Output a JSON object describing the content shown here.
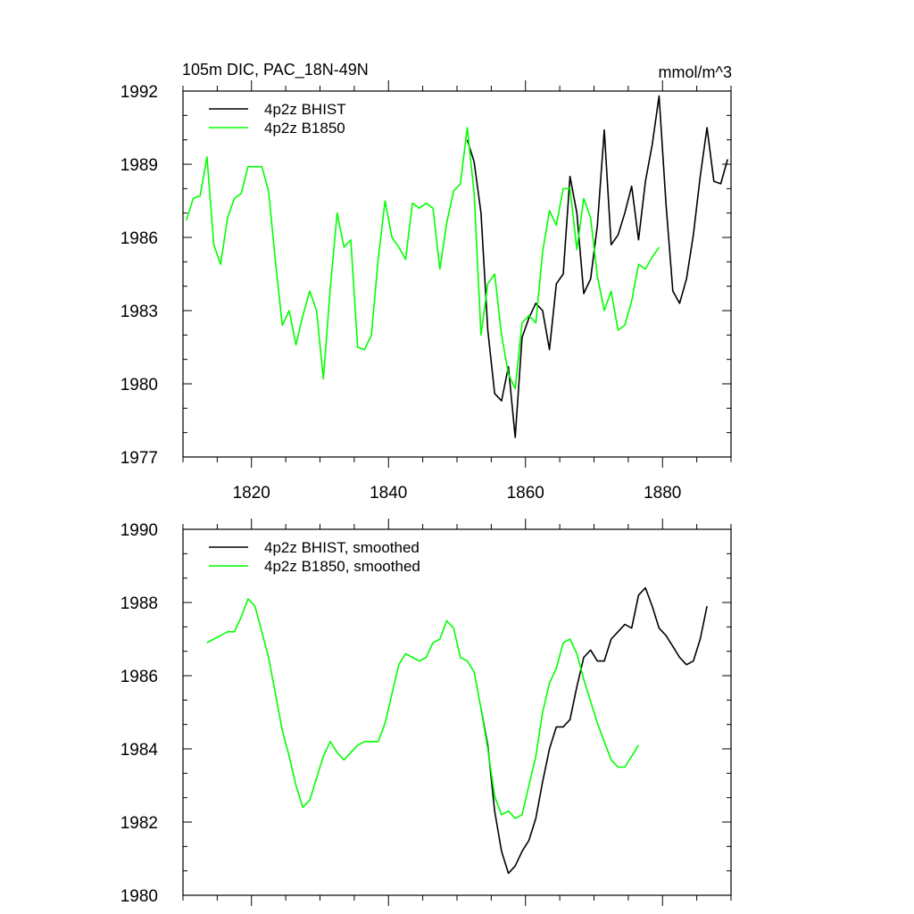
{
  "chart_data": [
    {
      "type": "line",
      "title": "105m DIC, PAC_18N-49N",
      "units": "mmol/m^3",
      "xlim": [
        1810,
        1890
      ],
      "ylim": [
        1977,
        1992
      ],
      "xticks": [
        1820,
        1840,
        1860,
        1880
      ],
      "yticks": [
        1977,
        1980,
        1983,
        1986,
        1989,
        1992
      ],
      "xtick_labels": [
        "1820",
        "1840",
        "1860",
        "1880"
      ],
      "ytick_labels": [
        "1977",
        "1980",
        "1983",
        "1986",
        "1989",
        "1992"
      ],
      "legend": "top-left",
      "series": [
        {
          "name": "4p2z BHIST",
          "color": "#000000",
          "x": [
            1851.5,
            1852.5,
            1853.5,
            1854.5,
            1855.5,
            1856.5,
            1857.5,
            1858.5,
            1859.5,
            1860.5,
            1861.5,
            1862.5,
            1863.5,
            1864.5,
            1865.5,
            1866.5,
            1867.5,
            1868.5,
            1869.5,
            1870.5,
            1871.5,
            1872.5,
            1873.5,
            1874.5,
            1875.5,
            1876.5,
            1877.5,
            1878.5,
            1879.5,
            1880.5,
            1881.5,
            1882.5,
            1883.5,
            1884.5,
            1885.5,
            1886.5,
            1887.5,
            1888.5,
            1889.5
          ],
          "y": [
            1990.0,
            1989.1,
            1987.0,
            1982.2,
            1979.6,
            1979.3,
            1980.7,
            1977.8,
            1981.9,
            1982.7,
            1983.3,
            1983.0,
            1981.4,
            1984.1,
            1984.5,
            1988.5,
            1987.0,
            1983.7,
            1984.3,
            1986.5,
            1990.4,
            1985.7,
            1986.1,
            1987.0,
            1988.1,
            1985.9,
            1988.3,
            1989.8,
            1991.8,
            1987.4,
            1983.8,
            1983.3,
            1984.3,
            1986.1,
            1988.5,
            1990.5,
            1988.3,
            1988.2,
            1989.2
          ]
        },
        {
          "name": "4p2z B1850",
          "color": "#00ff00",
          "x": [
            1810.5,
            1811.5,
            1812.5,
            1813.5,
            1814.5,
            1815.5,
            1816.5,
            1817.5,
            1818.5,
            1819.5,
            1820.5,
            1821.5,
            1822.5,
            1823.5,
            1824.5,
            1825.5,
            1826.5,
            1827.5,
            1828.5,
            1829.5,
            1830.5,
            1831.5,
            1832.5,
            1833.5,
            1834.5,
            1835.5,
            1836.5,
            1837.5,
            1838.5,
            1839.5,
            1840.5,
            1841.5,
            1842.5,
            1843.5,
            1844.5,
            1845.5,
            1846.5,
            1847.5,
            1848.5,
            1849.5,
            1850.5,
            1851.5,
            1852.5,
            1853.5,
            1854.5,
            1855.5,
            1856.5,
            1857.5,
            1858.5,
            1859.5,
            1860.5,
            1861.5,
            1862.5,
            1863.5,
            1864.5,
            1865.5,
            1866.5,
            1867.5,
            1868.5,
            1869.5,
            1870.5,
            1871.5,
            1872.5,
            1873.5,
            1874.5,
            1875.5,
            1876.5,
            1877.5,
            1878.5,
            1879.5
          ],
          "y": [
            1986.7,
            1987.6,
            1987.7,
            1989.3,
            1985.7,
            1984.9,
            1986.8,
            1987.6,
            1987.8,
            1988.9,
            1988.9,
            1988.9,
            1987.9,
            1985.0,
            1982.4,
            1983.0,
            1981.6,
            1982.8,
            1983.8,
            1983.0,
            1980.2,
            1983.9,
            1987.0,
            1985.6,
            1985.9,
            1981.5,
            1981.4,
            1982.0,
            1985.1,
            1987.5,
            1986.0,
            1985.6,
            1985.1,
            1987.4,
            1987.2,
            1987.4,
            1987.2,
            1984.7,
            1986.6,
            1987.9,
            1988.2,
            1990.5,
            1987.8,
            1982.0,
            1984.1,
            1984.5,
            1982.0,
            1980.4,
            1979.8,
            1982.5,
            1982.8,
            1982.5,
            1985.4,
            1987.1,
            1986.5,
            1988.0,
            1988.0,
            1985.5,
            1987.6,
            1986.8,
            1984.4,
            1983.0,
            1983.8,
            1982.2,
            1982.4,
            1983.4,
            1984.9,
            1984.7,
            1985.2,
            1985.6
          ]
        }
      ]
    },
    {
      "type": "line",
      "title": "",
      "units": "",
      "xlim": [
        1810,
        1890
      ],
      "ylim": [
        1980,
        1990
      ],
      "xticks": [
        1820,
        1840,
        1860,
        1880
      ],
      "yticks": [
        1980,
        1982,
        1984,
        1986,
        1988,
        1990
      ],
      "xtick_labels": [],
      "ytick_labels": [
        "1980",
        "1982",
        "1984",
        "1986",
        "1988",
        "1990"
      ],
      "legend": "top-left",
      "series": [
        {
          "name": "4p2z BHIST, smoothed",
          "color": "#000000",
          "x": [
            1853.5,
            1854.5,
            1855.5,
            1856.5,
            1857.5,
            1858.5,
            1859.5,
            1860.5,
            1861.5,
            1862.5,
            1863.5,
            1864.5,
            1865.5,
            1866.5,
            1867.5,
            1868.5,
            1869.5,
            1870.5,
            1871.5,
            1872.5,
            1873.5,
            1874.5,
            1875.5,
            1876.5,
            1877.5,
            1878.5,
            1879.5,
            1880.5,
            1881.5,
            1882.5,
            1883.5,
            1884.5,
            1885.5,
            1886.5
          ],
          "y": [
            1985.1,
            1984.1,
            1982.3,
            1981.2,
            1980.6,
            1980.8,
            1981.2,
            1981.5,
            1982.1,
            1983.1,
            1984.0,
            1984.6,
            1984.6,
            1984.8,
            1985.7,
            1986.5,
            1986.7,
            1986.4,
            1986.4,
            1987.0,
            1987.2,
            1987.4,
            1987.3,
            1988.2,
            1988.4,
            1987.9,
            1987.3,
            1987.1,
            1986.8,
            1986.5,
            1986.3,
            1986.4,
            1987.0,
            1987.9
          ]
        },
        {
          "name": "4p2z B1850, smoothed",
          "color": "#00ff00",
          "x": [
            1813.5,
            1814.5,
            1815.5,
            1816.5,
            1817.5,
            1818.5,
            1819.5,
            1820.5,
            1821.5,
            1822.5,
            1823.5,
            1824.5,
            1825.5,
            1826.5,
            1827.5,
            1828.5,
            1829.5,
            1830.5,
            1831.5,
            1832.5,
            1833.5,
            1834.5,
            1835.5,
            1836.5,
            1837.5,
            1838.5,
            1839.5,
            1840.5,
            1841.5,
            1842.5,
            1843.5,
            1844.5,
            1845.5,
            1846.5,
            1847.5,
            1848.5,
            1849.5,
            1850.5,
            1851.5,
            1852.5,
            1853.5,
            1854.5,
            1855.5,
            1856.5,
            1857.5,
            1858.5,
            1859.5,
            1860.5,
            1861.5,
            1862.5,
            1863.5,
            1864.5,
            1865.5,
            1866.5,
            1867.5,
            1868.5,
            1869.5,
            1870.5,
            1871.5,
            1872.5,
            1873.5,
            1874.5,
            1875.5,
            1876.5
          ],
          "y": [
            1986.9,
            1987.0,
            1987.1,
            1987.2,
            1987.2,
            1987.6,
            1988.1,
            1987.9,
            1987.2,
            1986.5,
            1985.5,
            1984.5,
            1983.8,
            1983.0,
            1982.4,
            1982.6,
            1983.2,
            1983.8,
            1984.2,
            1983.9,
            1983.7,
            1983.9,
            1984.1,
            1984.2,
            1984.2,
            1984.2,
            1984.7,
            1985.5,
            1986.3,
            1986.6,
            1986.5,
            1986.4,
            1986.5,
            1986.9,
            1987.0,
            1987.5,
            1987.3,
            1986.5,
            1986.4,
            1986.1,
            1985.1,
            1984.0,
            1982.7,
            1982.2,
            1982.3,
            1982.1,
            1982.2,
            1983.0,
            1983.8,
            1985.0,
            1985.8,
            1986.2,
            1986.9,
            1987.0,
            1986.6,
            1985.9,
            1985.3,
            1984.7,
            1984.2,
            1983.7,
            1983.5,
            1983.5,
            1983.8,
            1984.1
          ]
        }
      ]
    }
  ]
}
